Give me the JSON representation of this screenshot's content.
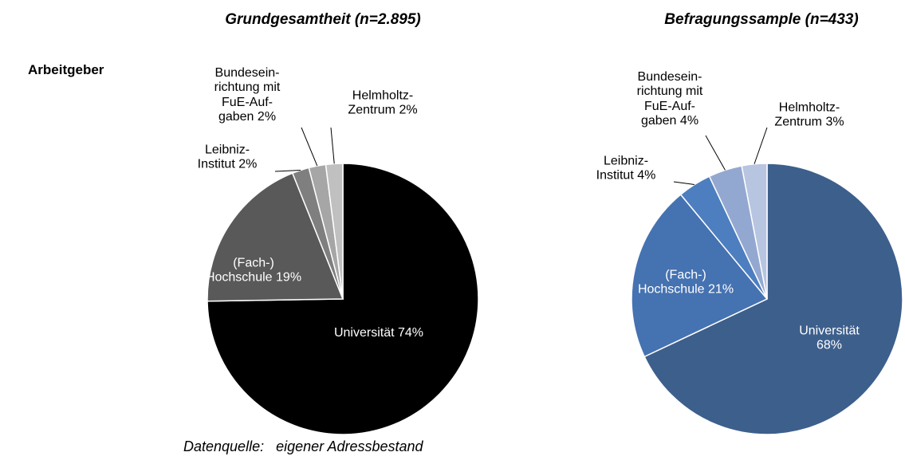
{
  "row_label": "Arbeitgeber",
  "source": "Datenquelle:   eigener Adressbestand",
  "chart_data": [
    {
      "type": "pie",
      "title": "Grundgesamtheit (n=2.895)",
      "categories": [
        "Universität",
        "(Fach-)\nHochschule",
        "Leibniz-\nInstitut",
        "Bundesein-\nrichtung mit\nFuE-Auf-\ngaben",
        "Helmholtz-\nZentrum"
      ],
      "values": [
        74,
        19,
        2,
        2,
        2
      ],
      "value_labels": [
        "74%",
        "19%",
        "2%",
        "2%",
        "2%"
      ],
      "colors": [
        "#000000",
        "#595959",
        "#7f7f7f",
        "#a6a6a6",
        "#c0c0c0"
      ]
    },
    {
      "type": "pie",
      "title": "Befragungssample (n=433)",
      "categories": [
        "Universität",
        "(Fach-)\nHochschule",
        "Leibniz-\nInstitut",
        "Bundesein-\nrichtung mit\nFuE-Auf-\ngaben",
        "Helmholtz-\nZentrum"
      ],
      "values": [
        68,
        21,
        4,
        4,
        3
      ],
      "value_labels": [
        "68%",
        "21%",
        "4%",
        "4%",
        "3%"
      ],
      "colors": [
        "#3d5f8c",
        "#4572b1",
        "#4d7ec0",
        "#93a8d1",
        "#b8c5e1"
      ]
    }
  ]
}
